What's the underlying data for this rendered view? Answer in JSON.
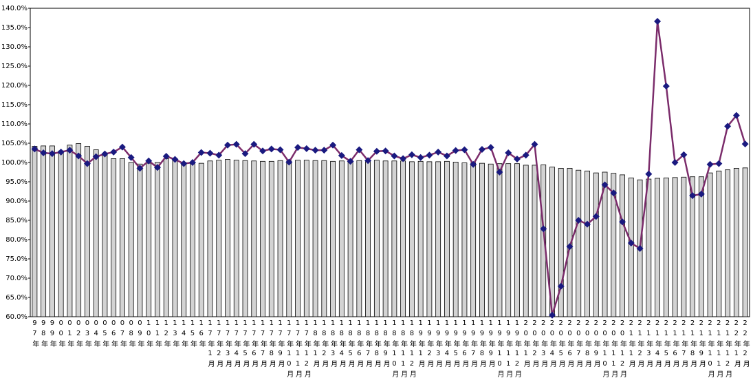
{
  "chart_data": {
    "type": "combo",
    "categories": [
      "97年",
      "98年",
      "99年",
      "00年",
      "01年",
      "02年",
      "03年",
      "04年",
      "05年",
      "06年",
      "07年",
      "08年",
      "09年",
      "10年",
      "11年",
      "12年",
      "13年",
      "14年",
      "15年",
      "16年",
      "17年1月",
      "17年2月",
      "17年3月",
      "17年4月",
      "17年5月",
      "17年6月",
      "17年7月",
      "17年8月",
      "17年9月",
      "17年10月",
      "17年11月",
      "17年12月",
      "18年1月",
      "18年2月",
      "18年3月",
      "18年4月",
      "18年5月",
      "18年6月",
      "18年7月",
      "18年8月",
      "18年9月",
      "18年10月",
      "18年11月",
      "18年12月",
      "19年1月",
      "19年2月",
      "19年3月",
      "19年4月",
      "19年5月",
      "19年6月",
      "19年7月",
      "19年8月",
      "19年9月",
      "19年10月",
      "19年11月",
      "19年12月",
      "20年1月",
      "20年2月",
      "20年3月",
      "20年4月",
      "20年5月",
      "20年6月",
      "20年7月",
      "20年8月",
      "20年9月",
      "20年10月",
      "20年11月",
      "20年12月",
      "21年1月",
      "21年2月",
      "21年3月",
      "21年4月",
      "21年5月",
      "21年6月",
      "21年7月",
      "21年8月",
      "21年9月",
      "21年10月",
      "21年11月",
      "21年12月",
      "22年1月",
      "22年2月"
    ],
    "series": [
      {
        "type": "bar",
        "color": "#d3d3d3",
        "values": [
          104.2,
          104.3,
          104.3,
          103.0,
          104.5,
          104.9,
          104.2,
          103.3,
          102.4,
          101.0,
          101.0,
          100.0,
          99.6,
          99.8,
          100.0,
          101.0,
          101.0,
          100.0,
          99.7,
          99.8,
          100.4,
          100.6,
          100.8,
          100.6,
          100.5,
          100.4,
          100.3,
          100.3,
          100.5,
          100.4,
          100.6,
          100.6,
          100.5,
          100.5,
          100.3,
          100.4,
          100.4,
          100.5,
          100.4,
          100.6,
          100.4,
          100.4,
          100.4,
          100.2,
          100.3,
          100.2,
          100.2,
          100.3,
          100.1,
          99.9,
          99.9,
          99.8,
          99.6,
          99.7,
          99.7,
          99.7,
          99.3,
          99.3,
          99.4,
          98.8,
          98.5,
          98.5,
          98.0,
          97.8,
          97.3,
          97.5,
          97.2,
          96.8,
          96.0,
          95.5,
          95.7,
          95.9,
          96.0,
          96.1,
          96.2,
          96.3,
          96.3,
          97.3,
          97.8,
          98.1,
          98.5,
          98.6
        ]
      },
      {
        "type": "line",
        "color": "#7b2c6b",
        "marker_color": "#1a1a80",
        "values": [
          103.5,
          102.5,
          102.3,
          102.7,
          103.2,
          101.7,
          99.7,
          101.5,
          102.2,
          102.7,
          104.0,
          101.3,
          98.5,
          100.4,
          98.7,
          101.6,
          100.8,
          99.7,
          100.0,
          102.6,
          102.4,
          101.9,
          104.5,
          104.7,
          102.3,
          104.7,
          103.0,
          103.5,
          103.3,
          100.1,
          103.9,
          103.6,
          103.2,
          103.2,
          104.5,
          101.8,
          100.3,
          103.3,
          100.5,
          102.9,
          103.0,
          101.7,
          101.0,
          102.0,
          101.3,
          101.9,
          102.7,
          101.7,
          103.1,
          103.3,
          99.5,
          103.4,
          103.9,
          97.5,
          102.5,
          100.9,
          101.9,
          104.7,
          82.8,
          60.4,
          67.9,
          78.2,
          85.0,
          84.0,
          86.0,
          94.2,
          92.1,
          84.6,
          79.1,
          77.7,
          97.0,
          136.6,
          119.8,
          100.0,
          102.0,
          91.4,
          91.8,
          99.5,
          99.7,
          109.4,
          112.2,
          104.8
        ]
      }
    ],
    "ylim": [
      60,
      140
    ],
    "yticks": [
      {
        "value": 60,
        "label": "60.0%"
      },
      {
        "value": 65,
        "label": "65.0%"
      },
      {
        "value": 70,
        "label": "70.0%"
      },
      {
        "value": 75,
        "label": "75.0%"
      },
      {
        "value": 80,
        "label": "80.0%"
      },
      {
        "value": 85,
        "label": "85.0%"
      },
      {
        "value": 90,
        "label": "90.0%"
      },
      {
        "value": 95,
        "label": "95.0%"
      },
      {
        "value": 100,
        "label": "100.0%"
      },
      {
        "value": 105,
        "label": "105.0%"
      },
      {
        "value": 110,
        "label": "110.0%"
      },
      {
        "value": 115,
        "label": "115.0%"
      },
      {
        "value": 120,
        "label": "120.0%"
      },
      {
        "value": 125,
        "label": "125.0%"
      },
      {
        "value": 130,
        "label": "130.0%"
      },
      {
        "value": 135,
        "label": "135.0%"
      },
      {
        "value": 140,
        "label": "140.0%"
      }
    ],
    "grid": false
  }
}
